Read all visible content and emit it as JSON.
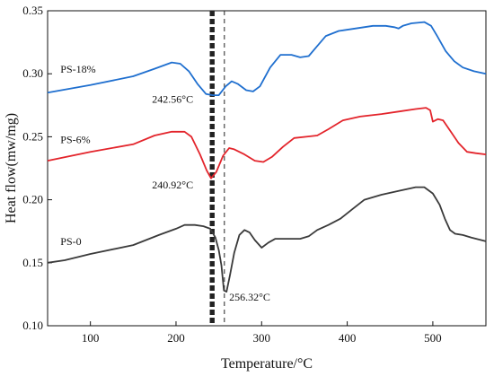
{
  "chart_data": {
    "type": "line",
    "xlabel": "Temperature/°C",
    "ylabel": "Heat flow(mw/mg)",
    "xlim": [
      50,
      562
    ],
    "ylim": [
      0.1,
      0.35
    ],
    "xticks": [
      100,
      200,
      300,
      400,
      500
    ],
    "yticks": [
      0.1,
      0.15,
      0.2,
      0.25,
      0.3,
      0.35
    ],
    "xtick_labels": [
      "100",
      "200",
      "300",
      "400",
      "500"
    ],
    "ytick_labels": [
      "0.10",
      "0.15",
      "0.20",
      "0.25",
      "0.30",
      "0.35"
    ],
    "grid": false,
    "legend": "none",
    "series": [
      {
        "name": "PS-18%",
        "color": "#1f6fcf",
        "points": [
          [
            50,
            0.285
          ],
          [
            100,
            0.291
          ],
          [
            150,
            0.298
          ],
          [
            175,
            0.304
          ],
          [
            195,
            0.309
          ],
          [
            205,
            0.308
          ],
          [
            215,
            0.302
          ],
          [
            225,
            0.292
          ],
          [
            235,
            0.284
          ],
          [
            243,
            0.283
          ],
          [
            250,
            0.283
          ],
          [
            258,
            0.29
          ],
          [
            265,
            0.294
          ],
          [
            272,
            0.292
          ],
          [
            282,
            0.287
          ],
          [
            290,
            0.286
          ],
          [
            298,
            0.29
          ],
          [
            310,
            0.305
          ],
          [
            322,
            0.315
          ],
          [
            335,
            0.315
          ],
          [
            345,
            0.313
          ],
          [
            355,
            0.314
          ],
          [
            365,
            0.322
          ],
          [
            375,
            0.33
          ],
          [
            390,
            0.334
          ],
          [
            410,
            0.336
          ],
          [
            430,
            0.338
          ],
          [
            445,
            0.338
          ],
          [
            455,
            0.337
          ],
          [
            460,
            0.336
          ],
          [
            465,
            0.338
          ],
          [
            475,
            0.34
          ],
          [
            490,
            0.341
          ],
          [
            498,
            0.338
          ],
          [
            505,
            0.33
          ],
          [
            515,
            0.318
          ],
          [
            525,
            0.31
          ],
          [
            535,
            0.305
          ],
          [
            548,
            0.302
          ],
          [
            562,
            0.3
          ]
        ]
      },
      {
        "name": "PS-6%",
        "color": "#e3242b",
        "points": [
          [
            50,
            0.231
          ],
          [
            100,
            0.238
          ],
          [
            150,
            0.244
          ],
          [
            175,
            0.251
          ],
          [
            195,
            0.254
          ],
          [
            210,
            0.254
          ],
          [
            218,
            0.25
          ],
          [
            228,
            0.236
          ],
          [
            236,
            0.223
          ],
          [
            241,
            0.217
          ],
          [
            247,
            0.222
          ],
          [
            255,
            0.235
          ],
          [
            262,
            0.241
          ],
          [
            268,
            0.24
          ],
          [
            280,
            0.236
          ],
          [
            292,
            0.231
          ],
          [
            302,
            0.23
          ],
          [
            312,
            0.234
          ],
          [
            325,
            0.242
          ],
          [
            338,
            0.249
          ],
          [
            352,
            0.25
          ],
          [
            365,
            0.251
          ],
          [
            378,
            0.256
          ],
          [
            395,
            0.263
          ],
          [
            415,
            0.266
          ],
          [
            440,
            0.268
          ],
          [
            460,
            0.27
          ],
          [
            480,
            0.272
          ],
          [
            492,
            0.273
          ],
          [
            497,
            0.271
          ],
          [
            500,
            0.262
          ],
          [
            506,
            0.264
          ],
          [
            512,
            0.263
          ],
          [
            520,
            0.255
          ],
          [
            530,
            0.245
          ],
          [
            540,
            0.238
          ],
          [
            550,
            0.237
          ],
          [
            562,
            0.236
          ]
        ]
      },
      {
        "name": "PS-0",
        "color": "#3a3a3a",
        "points": [
          [
            50,
            0.15
          ],
          [
            70,
            0.152
          ],
          [
            100,
            0.157
          ],
          [
            150,
            0.164
          ],
          [
            180,
            0.172
          ],
          [
            200,
            0.177
          ],
          [
            210,
            0.18
          ],
          [
            222,
            0.18
          ],
          [
            232,
            0.179
          ],
          [
            240,
            0.177
          ],
          [
            246,
            0.17
          ],
          [
            250,
            0.16
          ],
          [
            253,
            0.148
          ],
          [
            256,
            0.128
          ],
          [
            259,
            0.127
          ],
          [
            263,
            0.14
          ],
          [
            268,
            0.158
          ],
          [
            274,
            0.172
          ],
          [
            280,
            0.176
          ],
          [
            286,
            0.174
          ],
          [
            292,
            0.168
          ],
          [
            300,
            0.162
          ],
          [
            308,
            0.166
          ],
          [
            316,
            0.169
          ],
          [
            330,
            0.169
          ],
          [
            345,
            0.169
          ],
          [
            355,
            0.171
          ],
          [
            365,
            0.176
          ],
          [
            378,
            0.18
          ],
          [
            392,
            0.185
          ],
          [
            405,
            0.192
          ],
          [
            420,
            0.2
          ],
          [
            440,
            0.204
          ],
          [
            460,
            0.207
          ],
          [
            480,
            0.21
          ],
          [
            490,
            0.21
          ],
          [
            500,
            0.205
          ],
          [
            508,
            0.196
          ],
          [
            514,
            0.185
          ],
          [
            520,
            0.176
          ],
          [
            526,
            0.173
          ],
          [
            535,
            0.172
          ],
          [
            545,
            0.17
          ],
          [
            562,
            0.167
          ]
        ]
      }
    ],
    "series_labels": [
      {
        "text": "PS-18%",
        "x": 65,
        "y": 0.301
      },
      {
        "text": "PS-6%",
        "x": 65,
        "y": 0.245
      },
      {
        "text": "PS-0",
        "x": 65,
        "y": 0.164
      }
    ],
    "annotations": [
      {
        "text": "242.56°C",
        "x": 172,
        "y": 0.277
      },
      {
        "text": "240.92°C",
        "x": 172,
        "y": 0.209
      },
      {
        "text": "256.32°C",
        "x": 262,
        "y": 0.12
      }
    ],
    "reference_lines": [
      {
        "x": 241,
        "style": "thick-dashed"
      },
      {
        "x": 243.5,
        "style": "thick-dashed"
      },
      {
        "x": 256.5,
        "style": "thin-dashed"
      }
    ]
  }
}
